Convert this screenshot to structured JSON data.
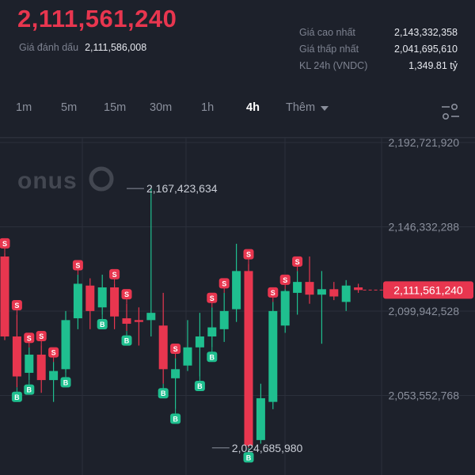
{
  "ticker": {
    "last_price": "2,111,561,240",
    "mark_label": "Giá đánh dấu",
    "mark_value": "2,111,586,008",
    "high_label": "Giá cao nhất",
    "high_value": "2,143,332,358",
    "low_label": "Giá thấp nhất",
    "low_value": "2,041,695,610",
    "vol_label": "KL 24h (VNDC)",
    "vol_value": "1,349.81 tỷ"
  },
  "timeframes": {
    "items": [
      "1m",
      "5m",
      "15m",
      "30m",
      "1h",
      "4h"
    ],
    "active": "4h",
    "more_label": "Thêm"
  },
  "watermark": "onus",
  "colors": {
    "up": "#1fbf8f",
    "down": "#e8364f",
    "bg": "#1d212b",
    "grid": "#2b303b",
    "axis_text": "#8a8f9c"
  },
  "chart_data": {
    "type": "candlestick",
    "y_ticks": [
      "2,192,721,920",
      "2,146,332,288",
      "2,099,942,528",
      "2,053,552,768"
    ],
    "y_tick_values": [
      2192721920,
      2146332288,
      2099942528,
      2053552768
    ],
    "current_price_label": "2,111,561,240",
    "current_price": 2111561240,
    "annotations": [
      {
        "text": "2,167,423,634",
        "value": 2167423634,
        "candle": 10
      },
      {
        "text": "2,024,685,980",
        "value": 2024685980,
        "candle": 17
      }
    ],
    "candles": [
      {
        "o": 2130000000,
        "h": 2132000000,
        "l": 2084000000,
        "c": 2086000000
      },
      {
        "o": 2086000000,
        "h": 2098000000,
        "l": 2058000000,
        "c": 2064000000
      },
      {
        "o": 2066000000,
        "h": 2080000000,
        "l": 2062000000,
        "c": 2076000000
      },
      {
        "o": 2076000000,
        "h": 2081000000,
        "l": 2055000000,
        "c": 2062000000
      },
      {
        "o": 2062000000,
        "h": 2072000000,
        "l": 2050000000,
        "c": 2067000000
      },
      {
        "o": 2068000000,
        "h": 2100000000,
        "l": 2066000000,
        "c": 2095000000
      },
      {
        "o": 2096000000,
        "h": 2120000000,
        "l": 2090000000,
        "c": 2115000000
      },
      {
        "o": 2114000000,
        "h": 2118000000,
        "l": 2090000000,
        "c": 2100000000
      },
      {
        "o": 2102000000,
        "h": 2120000000,
        "l": 2098000000,
        "c": 2113000000
      },
      {
        "o": 2113000000,
        "h": 2115000000,
        "l": 2090000000,
        "c": 2097000000
      },
      {
        "o": 2096000000,
        "h": 2104000000,
        "l": 2089000000,
        "c": 2093000000
      },
      {
        "o": 2095000000,
        "h": 2102000000,
        "l": 2081000000,
        "c": 2094000000
      },
      {
        "o": 2095000000,
        "h": 2167423634,
        "l": 2086000000,
        "c": 2099000000
      },
      {
        "o": 2092000000,
        "h": 2110000000,
        "l": 2060000000,
        "c": 2068000000
      },
      {
        "o": 2063000000,
        "h": 2074000000,
        "l": 2046000000,
        "c": 2068000000
      },
      {
        "o": 2070000000,
        "h": 2095000000,
        "l": 2067000000,
        "c": 2080000000
      },
      {
        "o": 2080000000,
        "h": 2099000000,
        "l": 2064000000,
        "c": 2086000000
      },
      {
        "o": 2086000000,
        "h": 2102000000,
        "l": 2080000000,
        "c": 2091000000
      },
      {
        "o": 2090000000,
        "h": 2110000000,
        "l": 2083000000,
        "c": 2100000000
      },
      {
        "o": 2101000000,
        "h": 2137000000,
        "l": 2094000000,
        "c": 2122000000
      },
      {
        "o": 2122000000,
        "h": 2126000000,
        "l": 2024685980,
        "c": 2026000000
      },
      {
        "o": 2029000000,
        "h": 2060000000,
        "l": 2027000000,
        "c": 2052000000
      },
      {
        "o": 2050000000,
        "h": 2105000000,
        "l": 2046000000,
        "c": 2100000000
      },
      {
        "o": 2092000000,
        "h": 2112000000,
        "l": 2088000000,
        "c": 2111000000
      },
      {
        "o": 2110000000,
        "h": 2122000000,
        "l": 2098000000,
        "c": 2116000000
      },
      {
        "o": 2116000000,
        "h": 2130000000,
        "l": 2104000000,
        "c": 2109000000
      },
      {
        "o": 2109000000,
        "h": 2122000000,
        "l": 2082000000,
        "c": 2112000000
      },
      {
        "o": 2112000000,
        "h": 2116000000,
        "l": 2106000000,
        "c": 2108000000
      },
      {
        "o": 2105000000,
        "h": 2117000000,
        "l": 2100000000,
        "c": 2114000000
      },
      {
        "o": 2113000000,
        "h": 2115000000,
        "l": 2110000000,
        "c": 2111561240
      }
    ],
    "sell_markers": [
      0,
      1,
      2,
      3,
      4,
      6,
      9,
      10,
      14,
      17,
      18,
      20,
      22,
      23,
      24
    ],
    "buy_markers": [
      1,
      2,
      5,
      8,
      10,
      13,
      14,
      16,
      17,
      20
    ],
    "sell_label": "S",
    "buy_label": "B"
  }
}
